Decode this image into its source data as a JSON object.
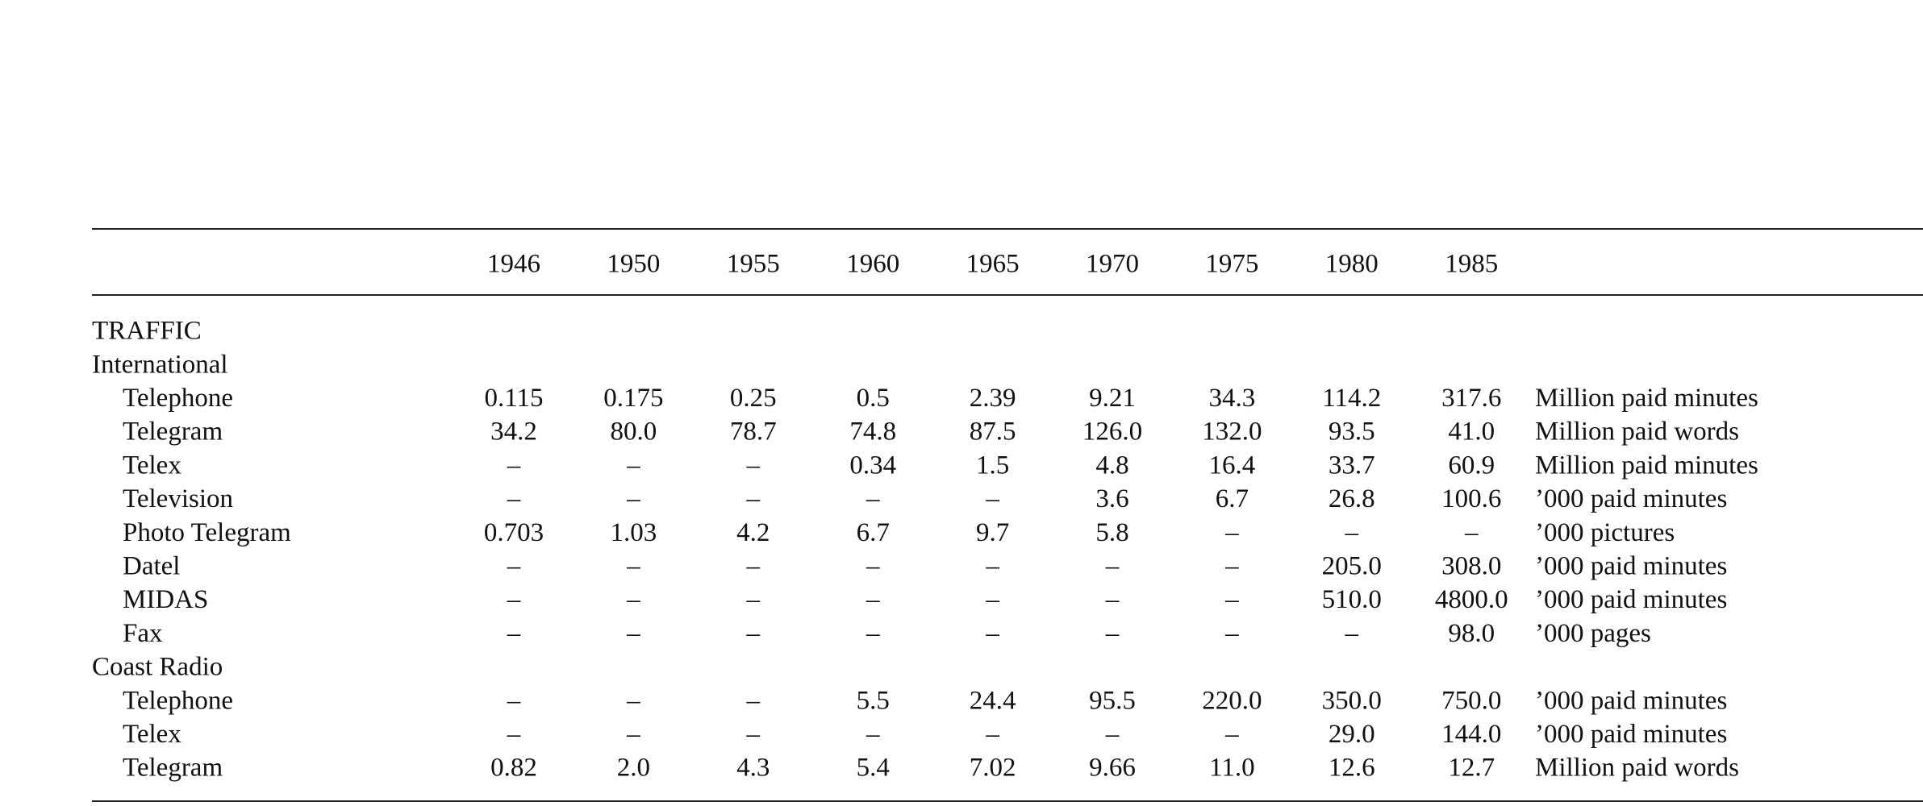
{
  "table": {
    "columns": [
      "1946",
      "1950",
      "1955",
      "1960",
      "1965",
      "1970",
      "1975",
      "1980",
      "1985"
    ],
    "heading": "TRAFFIC",
    "sections": [
      {
        "name": "International",
        "rows": [
          {
            "label": "Telephone",
            "values": [
              "0.115",
              "0.175",
              "0.25",
              "0.5",
              "2.39",
              "9.21",
              "34.3",
              "114.2",
              "317.6"
            ],
            "unit": "Million paid minutes"
          },
          {
            "label": "Telegram",
            "values": [
              "34.2",
              "80.0",
              "78.7",
              "74.8",
              "87.5",
              "126.0",
              "132.0",
              "93.5",
              "41.0"
            ],
            "unit": "Million paid words"
          },
          {
            "label": "Telex",
            "values": [
              "–",
              "–",
              "–",
              "0.34",
              "1.5",
              "4.8",
              "16.4",
              "33.7",
              "60.9"
            ],
            "unit": "Million paid minutes"
          },
          {
            "label": "Television",
            "values": [
              "–",
              "–",
              "–",
              "–",
              "–",
              "3.6",
              "6.7",
              "26.8",
              "100.6"
            ],
            "unit": "’000 paid minutes"
          },
          {
            "label": "Photo Telegram",
            "values": [
              "0.703",
              "1.03",
              "4.2",
              "6.7",
              "9.7",
              "5.8",
              "–",
              "–",
              "–"
            ],
            "unit": "’000 pictures"
          },
          {
            "label": "Datel",
            "values": [
              "–",
              "–",
              "–",
              "–",
              "–",
              "–",
              "–",
              "205.0",
              "308.0"
            ],
            "unit": "’000 paid minutes"
          },
          {
            "label": "MIDAS",
            "values": [
              "–",
              "–",
              "–",
              "–",
              "–",
              "–",
              "–",
              "510.0",
              "4800.0"
            ],
            "unit": "’000 paid minutes"
          },
          {
            "label": "Fax",
            "values": [
              "–",
              "–",
              "–",
              "–",
              "–",
              "–",
              "–",
              "–",
              "98.0"
            ],
            "unit": "’000 pages"
          }
        ]
      },
      {
        "name": "Coast Radio",
        "rows": [
          {
            "label": "Telephone",
            "values": [
              "–",
              "–",
              "–",
              "5.5",
              "24.4",
              "95.5",
              "220.0",
              "350.0",
              "750.0"
            ],
            "unit": "’000 paid minutes"
          },
          {
            "label": "Telex",
            "values": [
              "–",
              "–",
              "–",
              "–",
              "–",
              "–",
              "–",
              "29.0",
              "144.0"
            ],
            "unit": "’000 paid minutes"
          },
          {
            "label": "Telegram",
            "values": [
              "0.82",
              "2.0",
              "4.3",
              "5.4",
              "7.02",
              "9.66",
              "11.0",
              "12.6",
              "12.7"
            ],
            "unit": "Million paid words"
          }
        ]
      }
    ]
  }
}
